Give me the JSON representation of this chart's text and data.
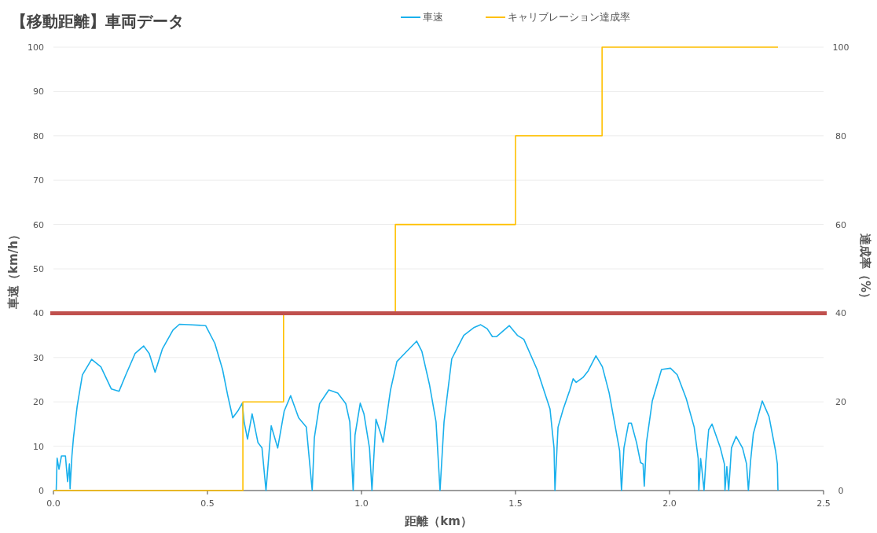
{
  "chart_data": {
    "type": "line",
    "title": "【移動距離】車両データ",
    "xlabel": "距離（km）",
    "ylabel": "車速（km/h）",
    "y2label": "達成率（%）",
    "xlim": [
      0,
      2.5
    ],
    "xticks": [
      {
        "value": 0,
        "label": "0.0"
      },
      {
        "value": 0.5,
        "label": "0.5"
      },
      {
        "value": 1,
        "label": "1.0"
      },
      {
        "value": 1.5,
        "label": "1.5"
      },
      {
        "value": 2,
        "label": "2.0"
      },
      {
        "value": 2.5,
        "label": "2.5"
      }
    ],
    "ylim": [
      0,
      100
    ],
    "yticks": [
      0,
      10,
      20,
      30,
      40,
      50,
      60,
      70,
      80,
      90,
      100
    ],
    "y2lim": [
      0,
      100
    ],
    "y2ticks": [
      0,
      20,
      40,
      60,
      80,
      100
    ],
    "grid": "y",
    "legend": "top",
    "ref_lines": [
      {
        "axis": "y",
        "value": 40,
        "color": "#c0504d"
      }
    ],
    "series": [
      {
        "name": "車速",
        "type": "line",
        "color": "#1ab0ec",
        "x": [
          0.009,
          0.012,
          0.018,
          0.026,
          0.039,
          0.046,
          0.052,
          0.054,
          0.06,
          0.065,
          0.077,
          0.094,
          0.124,
          0.154,
          0.188,
          0.213,
          0.235,
          0.265,
          0.293,
          0.311,
          0.33,
          0.354,
          0.388,
          0.409,
          0.439,
          0.494,
          0.524,
          0.549,
          0.566,
          0.582,
          0.6,
          0.613,
          0.619,
          0.63,
          0.645,
          0.664,
          0.677,
          0.69,
          0.707,
          0.728,
          0.749,
          0.77,
          0.796,
          0.821,
          0.84,
          0.847,
          0.864,
          0.894,
          0.923,
          0.949,
          0.962,
          0.973,
          0.979,
          0.996,
          1.008,
          1.026,
          1.034,
          1.047,
          1.064,
          1.07,
          1.077,
          1.094,
          1.115,
          1.14,
          1.179,
          1.196,
          1.221,
          1.242,
          1.255,
          1.268,
          1.293,
          1.332,
          1.366,
          1.387,
          1.408,
          1.425,
          1.438,
          1.48,
          1.506,
          1.527,
          1.57,
          1.612,
          1.625,
          1.628,
          1.638,
          1.655,
          1.676,
          1.687,
          1.697,
          1.719,
          1.736,
          1.761,
          1.782,
          1.804,
          1.821,
          1.838,
          1.844,
          1.852,
          1.867,
          1.876,
          1.893,
          1.906,
          1.914,
          1.918,
          1.925,
          1.944,
          1.974,
          2.003,
          2.025,
          2.054,
          2.08,
          2.093,
          2.095,
          2.101,
          2.105,
          2.112,
          2.118,
          2.127,
          2.138,
          2.165,
          2.178,
          2.18,
          2.186,
          2.192,
          2.201,
          2.216,
          2.237,
          2.25,
          2.256,
          2.263,
          2.272,
          2.301,
          2.323,
          2.344,
          2.35,
          2.352
        ],
        "values": [
          0,
          7.3,
          4.8,
          7.8,
          7.8,
          2,
          6,
          0.4,
          7.8,
          11.9,
          19,
          26.1,
          29.6,
          27.9,
          22.9,
          22.4,
          26.1,
          30.9,
          32.6,
          30.9,
          26.7,
          32,
          36.2,
          37.5,
          37.4,
          37.2,
          33.2,
          27.3,
          21.4,
          16.4,
          18.1,
          19.7,
          15.5,
          11.6,
          17.3,
          10.8,
          9.6,
          0,
          14.6,
          9.6,
          17.9,
          21.4,
          16.4,
          14.3,
          0,
          11.9,
          19.6,
          22.7,
          22,
          19.6,
          15.5,
          0,
          12.5,
          19.7,
          17.3,
          9.6,
          0,
          16.1,
          12.5,
          10.9,
          14.3,
          22.6,
          29.1,
          30.9,
          33.7,
          31.4,
          23.8,
          15.5,
          0,
          15.5,
          29.7,
          35,
          36.8,
          37.4,
          36.5,
          34.7,
          34.7,
          37.2,
          35,
          34.1,
          27.3,
          18.4,
          9.6,
          0,
          14.3,
          18.4,
          22.6,
          25.2,
          24.4,
          25.5,
          27,
          30.4,
          27.9,
          22,
          15.5,
          9,
          0,
          9.6,
          15.2,
          15.2,
          10.8,
          6.3,
          6,
          1,
          10.8,
          20.2,
          27.3,
          27.6,
          26.1,
          20.8,
          14.3,
          7.2,
          0,
          7.2,
          4.8,
          0,
          6.6,
          13.7,
          15,
          9.6,
          6,
          0,
          5.4,
          0,
          9.6,
          12.2,
          9.6,
          6,
          0,
          6.6,
          12.8,
          20.2,
          16.7,
          9,
          6,
          0
        ]
      },
      {
        "name": "キャリブレーション達成率",
        "type": "step",
        "axis": "y2",
        "color": "#ffc000",
        "x": [
          0,
          0.615,
          0.747,
          1.11,
          1.5,
          1.781,
          2.352
        ],
        "values": [
          0,
          20,
          40,
          60,
          80,
          100,
          100
        ]
      }
    ]
  }
}
